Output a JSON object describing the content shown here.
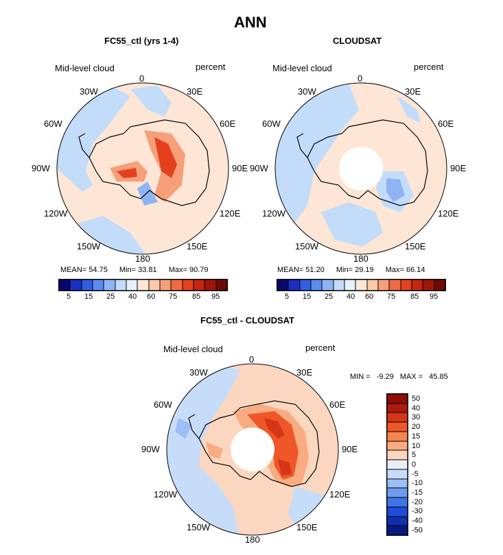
{
  "page": {
    "title": "ANN",
    "colors": {
      "background": "#ffffff",
      "land_outline": "#000000",
      "missing": "#ffffff"
    }
  },
  "panels": [
    {
      "id": "model",
      "title": "FC55_ctl (yrs 1-4)",
      "left_label": "Mid-level cloud",
      "right_label": "percent",
      "lon_labels": [
        "0",
        "30E",
        "60E",
        "90E",
        "120E",
        "150E",
        "180",
        "150W",
        "120W",
        "90W",
        "60W",
        "30W"
      ],
      "stats": {
        "mean_label": "MEAN=",
        "mean": "54.75",
        "min_label": "Min=",
        "min": "33.81",
        "max_label": "Max=",
        "max": "90.79"
      },
      "colorbar_labels": [
        "5",
        "15",
        "25",
        "40",
        "60",
        "75",
        "85",
        "95"
      ]
    },
    {
      "id": "obs",
      "title": "CLOUDSAT",
      "left_label": "Mid-level cloud",
      "right_label": "percent",
      "lon_labels": [
        "0",
        "30E",
        "60E",
        "90E",
        "120E",
        "150E",
        "180",
        "150W",
        "120W",
        "90W",
        "60W",
        "30W"
      ],
      "stats": {
        "mean_label": "MEAN=",
        "mean": "51.20",
        "min_label": "Min=",
        "min": "29.19",
        "max_label": "Max=",
        "max": "66.14"
      },
      "colorbar_labels": [
        "5",
        "15",
        "25",
        "40",
        "60",
        "75",
        "85",
        "95"
      ]
    },
    {
      "id": "diff",
      "title": "FC55_ctl - CLOUDSAT",
      "left_label": "Mid-level cloud",
      "right_label": "percent",
      "lon_labels": [
        "0",
        "30E",
        "60E",
        "90E",
        "120E",
        "150E",
        "180",
        "150W",
        "120W",
        "90W",
        "60W",
        "30W"
      ],
      "stats": {
        "min_label": "MIN =",
        "min": "-9.29",
        "max_label": "MAX =",
        "max": "45.85"
      },
      "colorbar_labels": [
        "50",
        "40",
        "30",
        "20",
        "15",
        "10",
        "5",
        "0",
        "-5",
        "-10",
        "-15",
        "-20",
        "-30",
        "-40",
        "-50"
      ]
    }
  ],
  "abs_colors": [
    "#08086b",
    "#1c2ec0",
    "#2f5fe0",
    "#5a8cf0",
    "#8fb4f5",
    "#c2dcfa",
    "#e6f1fb",
    "#fde6d6",
    "#fbc8a8",
    "#f6a07a",
    "#f06a45",
    "#e5401e",
    "#c4260f",
    "#9e1608",
    "#6e0a04"
  ],
  "diff_colors": [
    "#8e0d05",
    "#ad1c0a",
    "#d63517",
    "#ef5628",
    "#f7844f",
    "#f9ac82",
    "#fcd7bf",
    "#e9eef5",
    "#c7dcf8",
    "#9cbff5",
    "#6f9cf0",
    "#3f74e8",
    "#1f4cd8",
    "#1030b0",
    "#081a80"
  ]
}
